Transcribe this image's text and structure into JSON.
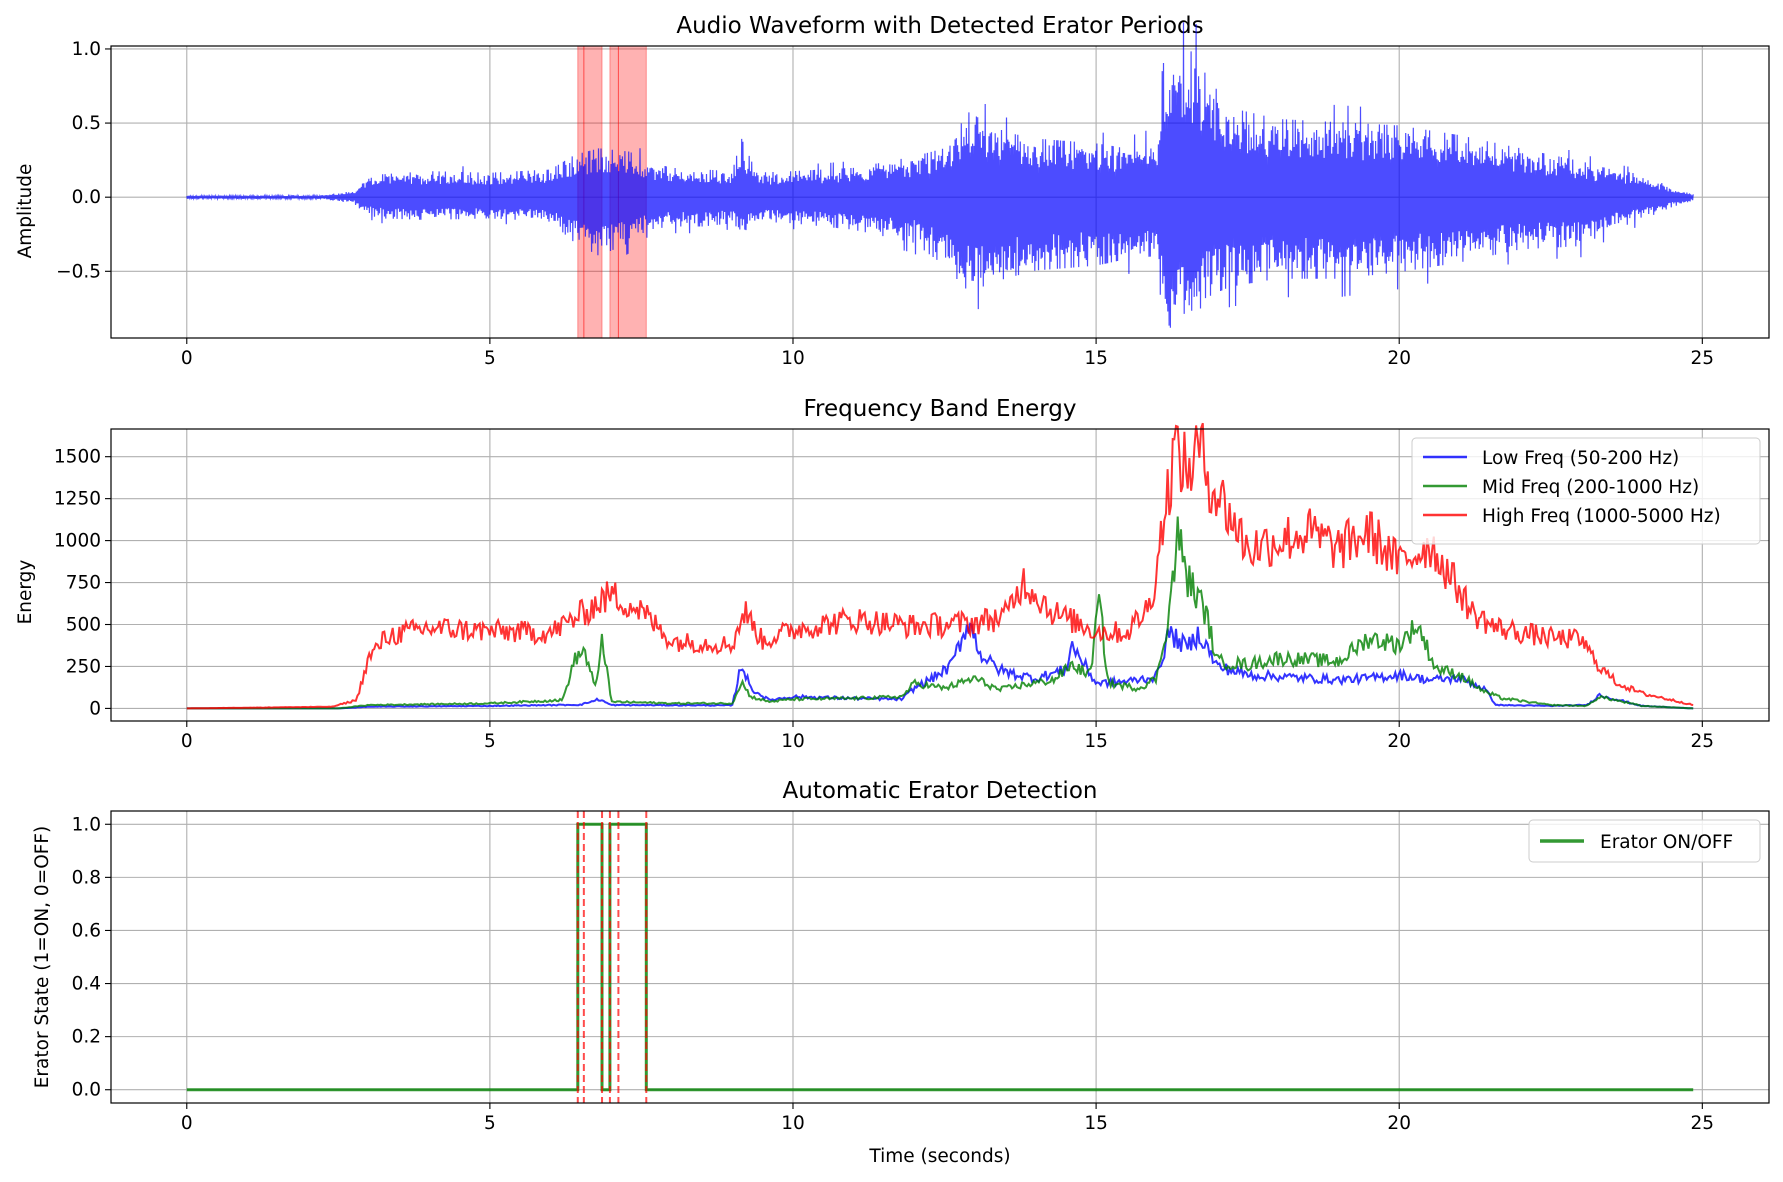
{
  "chart_data": [
    {
      "type": "line",
      "title": "Audio Waveform with Detected Erator Periods",
      "xlabel": "",
      "ylabel": "Amplitude",
      "xlim": [
        -1.25,
        26.1
      ],
      "ylim": [
        -0.95,
        1.02
      ],
      "xticks": [
        0,
        5,
        10,
        15,
        20,
        25
      ],
      "yticks": [
        -0.5,
        0.0,
        0.5,
        1.0
      ],
      "xtick_labels": [
        "0",
        "5",
        "10",
        "15",
        "20",
        "25"
      ],
      "ytick_labels": [
        "−0.5",
        "0.0",
        "0.5",
        "1.0"
      ],
      "grid": true,
      "series_color": "#0000ff",
      "highlight_color": "#ff0000",
      "highlighted_periods": [
        [
          6.45,
          6.55
        ],
        [
          6.55,
          6.85
        ],
        [
          6.98,
          7.12
        ],
        [
          7.12,
          7.58
        ]
      ],
      "envelope": {
        "x": [
          0,
          2.2,
          2.8,
          2.9,
          3.2,
          4.0,
          5.0,
          6.0,
          6.4,
          6.8,
          7.3,
          7.6,
          8.0,
          8.5,
          9.0,
          9.15,
          9.4,
          10.0,
          11.0,
          12.0,
          12.5,
          12.9,
          13.5,
          14.0,
          15.0,
          15.5,
          16.0,
          16.1,
          16.3,
          16.6,
          16.8,
          17.2,
          18.0,
          19.0,
          20.0,
          21.0,
          22.0,
          23.0,
          23.5,
          24.0,
          24.5,
          24.85
        ],
        "upper": [
          0.01,
          0.01,
          0.04,
          0.1,
          0.14,
          0.16,
          0.15,
          0.17,
          0.26,
          0.3,
          0.28,
          0.22,
          0.18,
          0.17,
          0.16,
          0.36,
          0.15,
          0.16,
          0.18,
          0.25,
          0.3,
          0.52,
          0.4,
          0.36,
          0.33,
          0.3,
          0.35,
          0.66,
          0.85,
          0.9,
          0.76,
          0.55,
          0.48,
          0.46,
          0.44,
          0.38,
          0.3,
          0.22,
          0.17,
          0.14,
          0.06,
          0.02
        ],
        "lower": [
          -0.01,
          -0.01,
          -0.04,
          -0.1,
          -0.13,
          -0.14,
          -0.13,
          -0.15,
          -0.28,
          -0.36,
          -0.28,
          -0.2,
          -0.18,
          -0.18,
          -0.16,
          -0.26,
          -0.15,
          -0.16,
          -0.2,
          -0.28,
          -0.42,
          -0.58,
          -0.5,
          -0.45,
          -0.42,
          -0.38,
          -0.42,
          -0.72,
          -0.85,
          -0.78,
          -0.62,
          -0.55,
          -0.5,
          -0.5,
          -0.46,
          -0.4,
          -0.32,
          -0.3,
          -0.2,
          -0.14,
          -0.06,
          -0.02
        ]
      }
    },
    {
      "type": "line",
      "title": "Frequency Band Energy",
      "xlabel": "",
      "ylabel": "Energy",
      "xlim": [
        -1.25,
        26.1
      ],
      "ylim": [
        -75,
        1665
      ],
      "xticks": [
        0,
        5,
        10,
        15,
        20,
        25
      ],
      "yticks": [
        0,
        250,
        500,
        750,
        1000,
        1250,
        1500
      ],
      "xtick_labels": [
        "0",
        "5",
        "10",
        "15",
        "20",
        "25"
      ],
      "ytick_labels": [
        "0",
        "250",
        "500",
        "750",
        "1000",
        "1250",
        "1500"
      ],
      "grid": true,
      "legend_position": "upper right",
      "series": [
        {
          "name": "Low Freq (50-200 Hz)",
          "color": "#0000ff",
          "x": [
            0,
            2.5,
            3.0,
            5.0,
            6.5,
            6.8,
            7.0,
            9.0,
            9.15,
            9.3,
            9.6,
            10.0,
            11.0,
            11.8,
            12.0,
            12.3,
            12.6,
            12.9,
            13.1,
            13.4,
            13.7,
            14.0,
            14.5,
            14.6,
            15.0,
            15.5,
            16.0,
            16.2,
            16.5,
            16.7,
            17.0,
            17.5,
            18.0,
            19.0,
            19.5,
            20.0,
            20.5,
            21.0,
            21.4,
            21.6,
            22.5,
            23.1,
            23.3,
            24.0,
            24.85
          ],
          "y": [
            0,
            0,
            10,
            15,
            22,
            55,
            20,
            18,
            270,
            120,
            50,
            70,
            60,
            55,
            120,
            180,
            250,
            520,
            320,
            230,
            200,
            180,
            230,
            380,
            150,
            160,
            190,
            450,
            360,
            450,
            250,
            200,
            190,
            170,
            180,
            200,
            170,
            180,
            120,
            20,
            15,
            20,
            80,
            15,
            0
          ]
        },
        {
          "name": "Mid Freq (200-1000 Hz)",
          "color": "#008000",
          "x": [
            0,
            2.5,
            3.0,
            5.0,
            6.2,
            6.4,
            6.55,
            6.75,
            6.85,
            7.0,
            8.0,
            9.0,
            9.15,
            9.3,
            9.6,
            10.0,
            11.0,
            11.8,
            12.0,
            12.5,
            13.0,
            13.4,
            13.8,
            14.3,
            14.6,
            14.9,
            15.05,
            15.2,
            15.7,
            16.0,
            16.2,
            16.35,
            16.5,
            16.8,
            17.0,
            17.5,
            18.0,
            19.0,
            19.5,
            20.0,
            20.3,
            20.6,
            21.0,
            21.4,
            21.7,
            22.5,
            23.1,
            23.3,
            24.0,
            24.85
          ],
          "y": [
            0,
            0,
            20,
            30,
            50,
            290,
            350,
            110,
            440,
            40,
            30,
            30,
            160,
            70,
            40,
            55,
            60,
            70,
            150,
            120,
            180,
            110,
            140,
            170,
            260,
            200,
            650,
            150,
            120,
            180,
            560,
            1040,
            780,
            580,
            280,
            260,
            300,
            280,
            420,
            380,
            500,
            240,
            200,
            100,
            60,
            20,
            15,
            70,
            15,
            0
          ]
        },
        {
          "name": "High Freq (1000-5000 Hz)",
          "color": "#ff0000",
          "x": [
            0,
            2.4,
            2.8,
            3.0,
            3.3,
            4.0,
            5.0,
            6.0,
            6.5,
            7.0,
            7.5,
            8.0,
            9.0,
            9.2,
            9.5,
            10.0,
            11.0,
            12.0,
            13.0,
            13.5,
            13.8,
            14.3,
            15.0,
            15.5,
            15.9,
            16.1,
            16.3,
            16.5,
            16.7,
            16.9,
            17.2,
            17.5,
            18.0,
            18.5,
            19.0,
            19.5,
            20.0,
            20.5,
            21.0,
            21.2,
            21.6,
            22.5,
            23.0,
            23.3,
            23.6,
            24.0,
            24.5,
            24.85
          ],
          "y": [
            0,
            10,
            50,
            300,
            430,
            480,
            460,
            450,
            560,
            680,
            580,
            400,
            380,
            580,
            400,
            470,
            530,
            490,
            510,
            550,
            760,
            570,
            460,
            450,
            620,
            1100,
            1560,
            1400,
            1560,
            1340,
            1160,
            950,
            1000,
            1050,
            950,
            1050,
            860,
            980,
            700,
            570,
            480,
            420,
            410,
            250,
            150,
            90,
            50,
            20
          ]
        }
      ]
    },
    {
      "type": "line",
      "title": "Automatic Erator Detection",
      "xlabel": "Time (seconds)",
      "ylabel": "Erator State (1=ON, 0=OFF)",
      "xlim": [
        -1.25,
        26.1
      ],
      "ylim": [
        -0.05,
        1.05
      ],
      "xticks": [
        0,
        5,
        10,
        15,
        20,
        25
      ],
      "yticks": [
        0.0,
        0.2,
        0.4,
        0.6,
        0.8,
        1.0
      ],
      "xtick_labels": [
        "0",
        "5",
        "10",
        "15",
        "20",
        "25"
      ],
      "ytick_labels": [
        "0.0",
        "0.2",
        "0.4",
        "0.6",
        "0.8",
        "1.0"
      ],
      "grid": true,
      "legend_position": "upper right",
      "series": [
        {
          "name": "Erator ON/OFF",
          "color": "#008000",
          "x": [
            0,
            6.45,
            6.45,
            6.55,
            6.55,
            6.85,
            6.85,
            6.98,
            6.98,
            7.12,
            7.12,
            7.58,
            7.58,
            24.85
          ],
          "y": [
            0,
            0,
            1,
            1,
            1,
            1,
            0,
            0,
            1,
            1,
            1,
            1,
            0,
            0
          ]
        }
      ],
      "event_markers_color": "#ff0000",
      "event_markers": [
        6.45,
        6.55,
        6.85,
        6.98,
        7.12,
        7.58
      ]
    }
  ]
}
